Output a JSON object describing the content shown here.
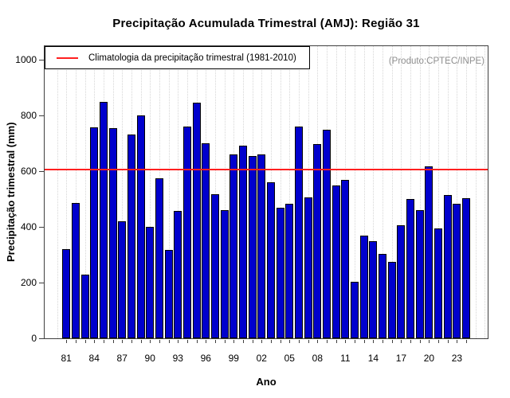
{
  "title": "Precipitação Acumulada Trimestral (AMJ): Região 31",
  "xlabel": "Ano",
  "ylabel": "Precipitação trimestral (mm)",
  "legend": {
    "label": "Climatologia da precipitação trimestral (1981-2010)"
  },
  "watermark": "(Produto:CPTEC/INPE)",
  "colors": {
    "bar": "#0000cd",
    "bar_border": "#000000",
    "climatology_line": "#ff2020",
    "grid": "#d6d6d6",
    "axis": "#3f3f3f",
    "watermark_text": "#8f8f8f"
  },
  "chart_data": {
    "type": "bar",
    "title": "Precipitação Acumulada Trimestral (AMJ): Região 31",
    "xlabel": "Ano",
    "ylabel": "Precipitação trimestral (mm)",
    "x": [
      1981,
      1982,
      1983,
      1984,
      1985,
      1986,
      1987,
      1988,
      1989,
      1990,
      1991,
      1992,
      1993,
      1994,
      1995,
      1996,
      1997,
      1998,
      1999,
      2000,
      2001,
      2002,
      2003,
      2004,
      2005,
      2006,
      2007,
      2008,
      2009,
      2010,
      2011,
      2012,
      2013,
      2014,
      2015,
      2016,
      2017,
      2018,
      2019,
      2020,
      2021,
      2022,
      2023,
      2024
    ],
    "values": [
      320,
      487,
      230,
      756,
      849,
      754,
      420,
      732,
      799,
      401,
      575,
      318,
      457,
      759,
      845,
      701,
      516,
      461,
      661,
      692,
      654,
      660,
      561,
      470,
      482,
      761,
      506,
      697,
      749,
      549,
      570,
      204,
      368,
      349,
      304,
      275,
      406,
      501,
      459,
      616,
      394,
      514,
      482,
      504
    ],
    "climatology_value": 605,
    "climatology_label": "Climatologia da precipitação trimestral (1981-2010)",
    "ylim": [
      0,
      1053
    ],
    "yticks": [
      0,
      200,
      400,
      600,
      800,
      1000
    ],
    "xtick_labels": [
      "81",
      "84",
      "87",
      "90",
      "93",
      "96",
      "99",
      "02",
      "05",
      "08",
      "11",
      "14",
      "17",
      "20",
      "23"
    ],
    "grid": "vertical-dotted",
    "legend_position": "top-left",
    "annotation": "(Produto:CPTEC/INPE)"
  }
}
